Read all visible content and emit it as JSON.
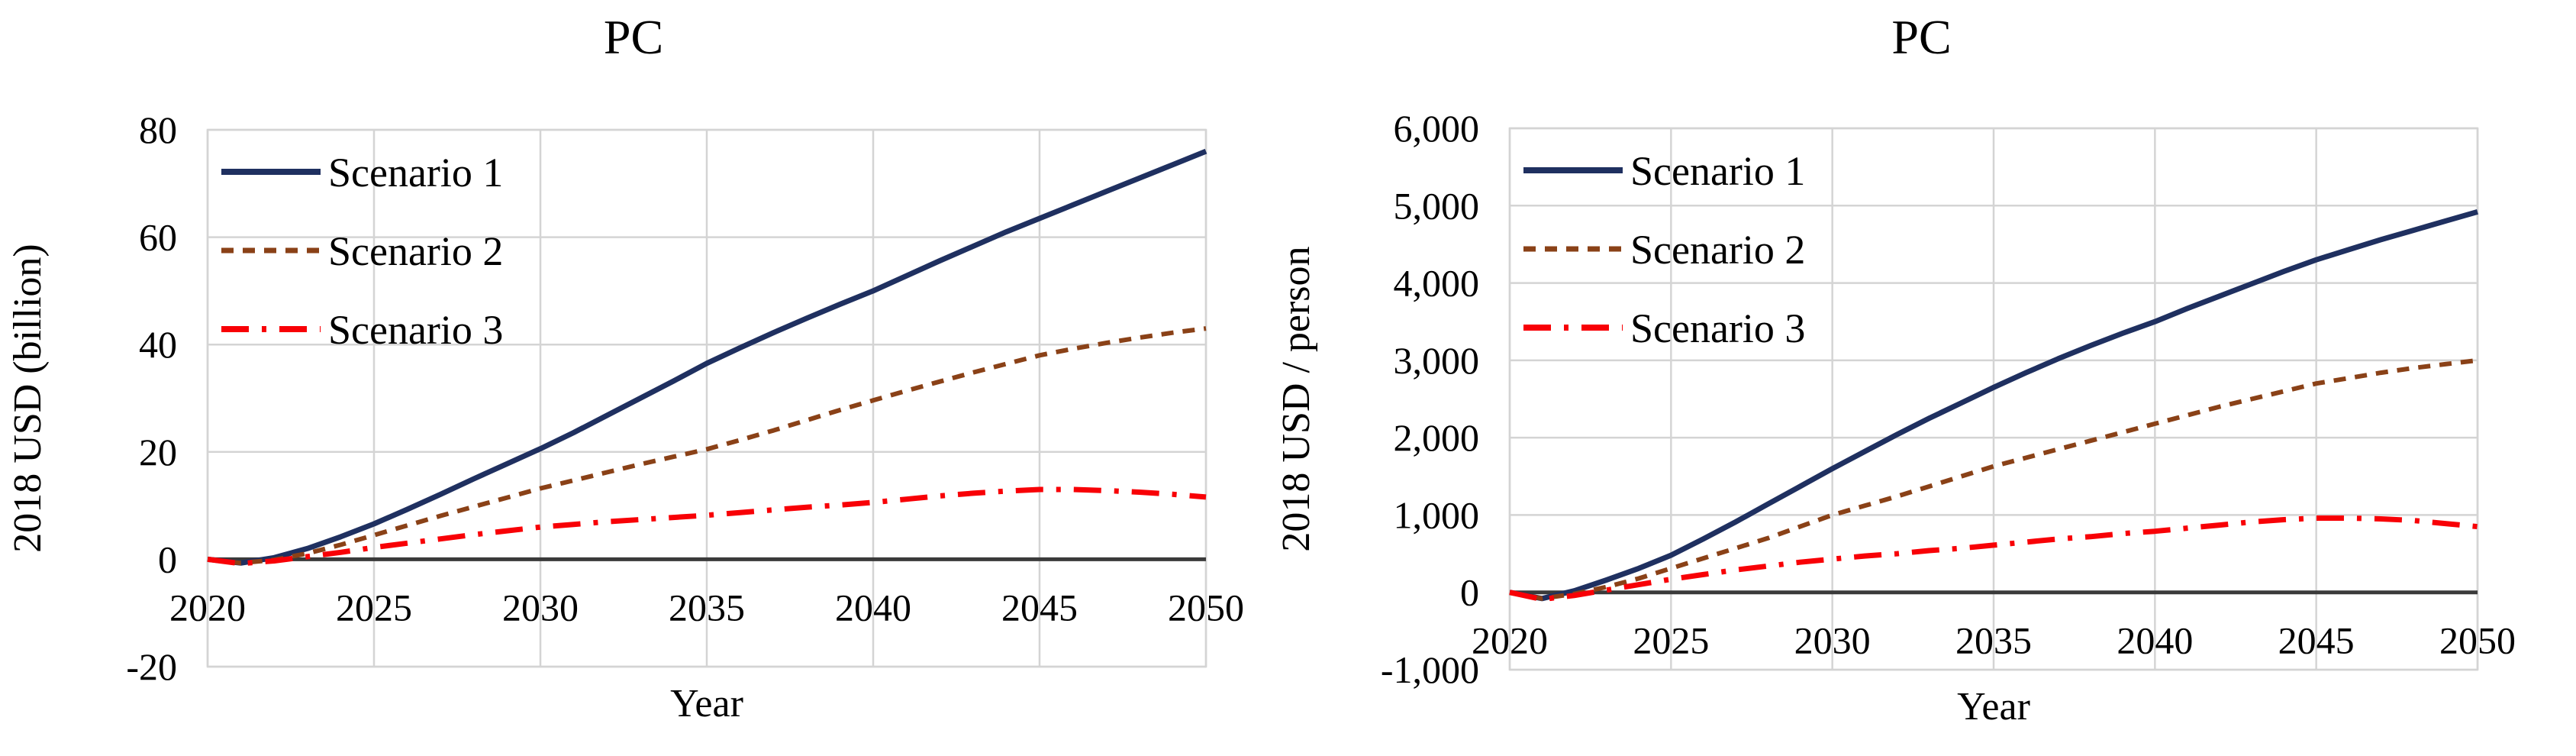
{
  "page": {
    "background": "#ffffff"
  },
  "colors": {
    "grid": "#d4d4d4",
    "plot_border": "#d4d4d4",
    "zero_axis_line": "#3a3a3a",
    "scenario1": "#1f3060",
    "scenario2": "#8a4117",
    "scenario3": "#f80006",
    "text": "#000000"
  },
  "chart_data": [
    {
      "type": "line",
      "title": "PC",
      "xlabel": "Year",
      "ylabel": "2018 USD (billion)",
      "xlim": [
        2020,
        2050
      ],
      "ylim": [
        -20,
        80
      ],
      "grid": true,
      "legend_position": "top-left-inside",
      "xticks": [
        2020,
        2025,
        2030,
        2035,
        2040,
        2045,
        2050
      ],
      "yticks": [
        -20,
        0,
        20,
        40,
        60,
        80
      ],
      "ytick_labels": [
        "-20",
        "0",
        "20",
        "40",
        "60",
        "80"
      ],
      "x": [
        2020,
        2021,
        2022,
        2023,
        2024,
        2025,
        2026,
        2027,
        2028,
        2029,
        2030,
        2031,
        2032,
        2033,
        2034,
        2035,
        2036,
        2037,
        2038,
        2039,
        2040,
        2041,
        2042,
        2043,
        2044,
        2045,
        2046,
        2047,
        2048,
        2049,
        2050
      ],
      "series": [
        {
          "name": "Scenario 1",
          "color": "#1f3060",
          "style": "solid",
          "values": [
            0,
            -0.7,
            0.3,
            2.0,
            4.2,
            6.6,
            9.3,
            12.1,
            15.0,
            17.8,
            20.6,
            23.6,
            26.8,
            30.0,
            33.2,
            36.5,
            39.4,
            42.2,
            44.9,
            47.5,
            50.0,
            52.8,
            55.6,
            58.3,
            61.0,
            63.5,
            66.0,
            68.5,
            71.0,
            73.5,
            76.0
          ]
        },
        {
          "name": "Scenario 2",
          "color": "#8a4117",
          "style": "dashed",
          "values": [
            0,
            -0.7,
            -0.1,
            1.1,
            2.7,
            4.5,
            6.3,
            8.1,
            9.8,
            11.5,
            13.2,
            14.7,
            16.2,
            17.7,
            19.1,
            20.5,
            22.2,
            24.0,
            25.9,
            27.8,
            29.6,
            31.4,
            33.1,
            34.8,
            36.4,
            38.0,
            39.2,
            40.3,
            41.3,
            42.2,
            43.0
          ]
        },
        {
          "name": "Scenario 3",
          "color": "#f80006",
          "style": "dash-dot",
          "values": [
            0,
            -0.8,
            -0.3,
            0.5,
            1.3,
            2.2,
            3.0,
            3.8,
            4.6,
            5.3,
            6.0,
            6.5,
            7.0,
            7.4,
            7.8,
            8.2,
            8.7,
            9.2,
            9.7,
            10.1,
            10.6,
            11.2,
            11.8,
            12.3,
            12.7,
            13.0,
            13.0,
            12.8,
            12.5,
            12.1,
            11.6
          ]
        }
      ]
    },
    {
      "type": "line",
      "title": "PC",
      "xlabel": "Year",
      "ylabel": "2018 USD / person",
      "xlim": [
        2020,
        2050
      ],
      "ylim": [
        -1000,
        6000
      ],
      "grid": true,
      "legend_position": "top-left-inside",
      "xticks": [
        2020,
        2025,
        2030,
        2035,
        2040,
        2045,
        2050
      ],
      "yticks": [
        -1000,
        0,
        1000,
        2000,
        3000,
        4000,
        5000,
        6000
      ],
      "ytick_labels": [
        "-1,000",
        "0",
        "1,000",
        "2,000",
        "3,000",
        "4,000",
        "5,000",
        "6,000"
      ],
      "x": [
        2020,
        2021,
        2022,
        2023,
        2024,
        2025,
        2026,
        2027,
        2028,
        2029,
        2030,
        2031,
        2032,
        2033,
        2034,
        2035,
        2036,
        2037,
        2038,
        2039,
        2040,
        2041,
        2042,
        2043,
        2044,
        2045,
        2046,
        2047,
        2048,
        2049,
        2050
      ],
      "series": [
        {
          "name": "Scenario 1",
          "color": "#1f3060",
          "style": "solid",
          "values": [
            0,
            -80,
            20,
            160,
            310,
            480,
            690,
            910,
            1140,
            1370,
            1600,
            1820,
            2040,
            2250,
            2450,
            2650,
            2840,
            3020,
            3190,
            3350,
            3500,
            3670,
            3830,
            3990,
            4150,
            4300,
            4430,
            4560,
            4680,
            4800,
            4920
          ]
        },
        {
          "name": "Scenario 2",
          "color": "#8a4117",
          "style": "dashed",
          "values": [
            0,
            -80,
            -20,
            70,
            180,
            310,
            440,
            570,
            700,
            850,
            1000,
            1120,
            1240,
            1370,
            1500,
            1630,
            1740,
            1850,
            1960,
            2070,
            2180,
            2290,
            2400,
            2500,
            2600,
            2700,
            2770,
            2840,
            2900,
            2950,
            3000
          ]
        },
        {
          "name": "Scenario 3",
          "color": "#f80006",
          "style": "dash-dot",
          "values": [
            0,
            -90,
            -40,
            30,
            100,
            170,
            230,
            290,
            340,
            390,
            430,
            470,
            500,
            540,
            570,
            610,
            650,
            690,
            720,
            760,
            790,
            830,
            870,
            910,
            940,
            960,
            960,
            950,
            930,
            890,
            850
          ]
        }
      ]
    }
  ]
}
